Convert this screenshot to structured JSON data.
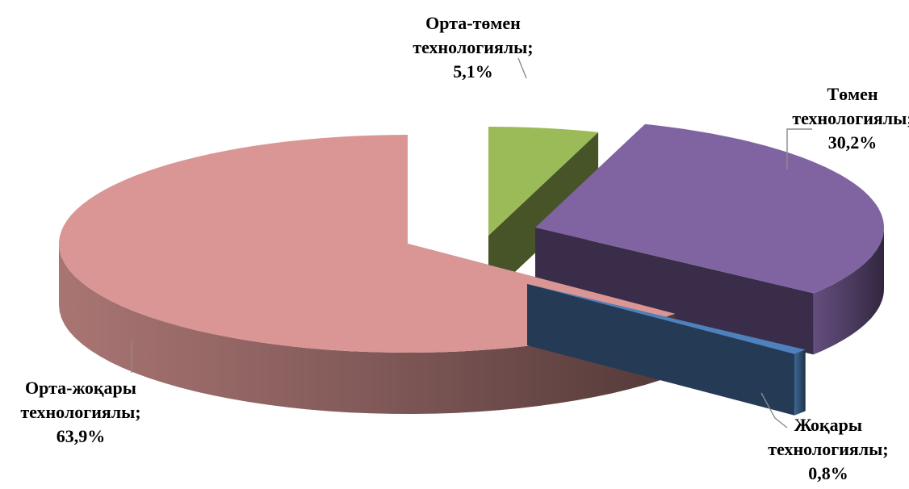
{
  "chart_data": {
    "type": "pie",
    "title": "",
    "legend": "none",
    "series": [
      {
        "categories": [
          "Орта-төмен технологиялы",
          "Төмен технологиялы",
          "Жоғары технологиялы",
          "Орта-жоғары технологиялы"
        ],
        "values": [
          5.1,
          30.2,
          0.8,
          63.9
        ]
      }
    ],
    "data_labels": [
      {
        "line1": "Орта-төмен",
        "line2": "технологиялы;",
        "value": "5,1%"
      },
      {
        "line1": "Төмен",
        "line2": "технологиялы;",
        "value": "30,2%"
      },
      {
        "line1": "Жоқары",
        "line2": "технологиялы;",
        "value": "0,8%"
      },
      {
        "line1": "Орта-жоқары",
        "line2": "технологиялы;",
        "value": "63,9%"
      }
    ],
    "colors": {
      "Орта-төмен технологиялы": "#9BBB59",
      "Төмен технологиялы": "#8064A2",
      "Жоғары технологиялы": "#4F81BD",
      "Орта-жоғары технологиялы": "#D99694"
    },
    "style": "3d-exploded-pie"
  }
}
